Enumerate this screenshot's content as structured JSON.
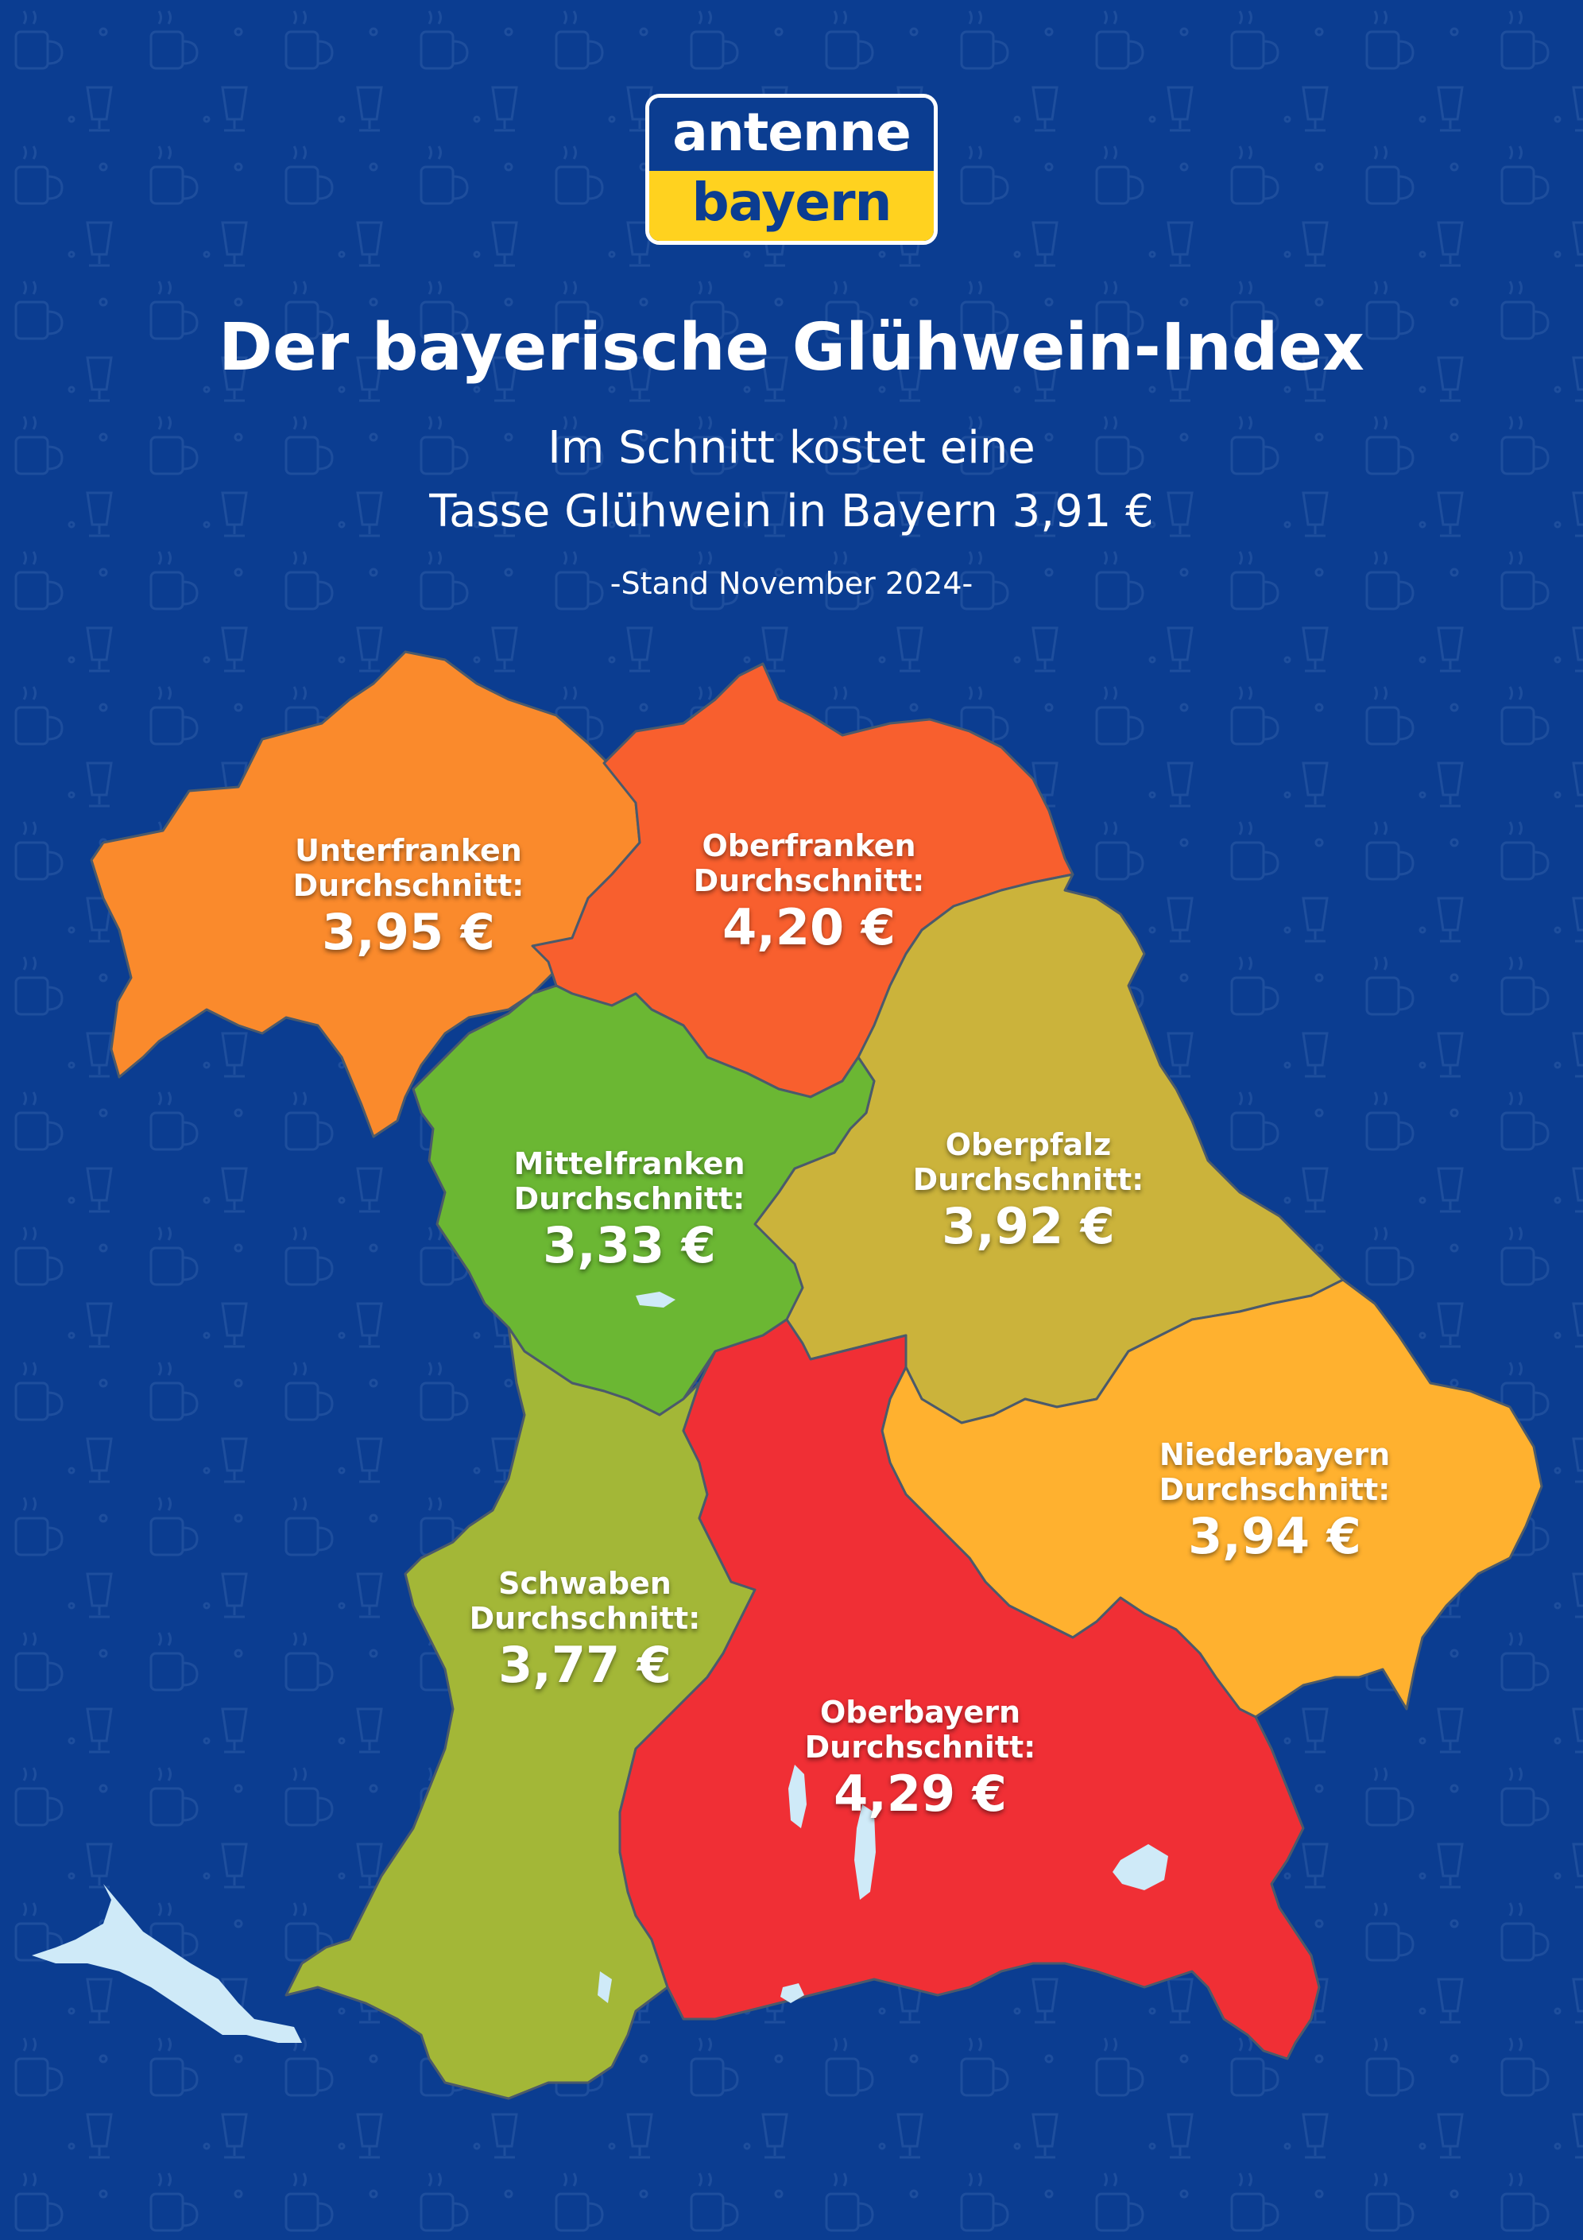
{
  "logo": {
    "line1": "antenne",
    "line2": "bayern"
  },
  "title": "Der bayerische Glühwein-Index",
  "subtitle_line1": "Im Schnitt kostet eine",
  "subtitle_line2": "Tasse Glühwein in Bayern 3,91 €",
  "date_note": "-Stand November 2024-",
  "colors": {
    "background": "#0b3d91",
    "unterfranken": "#fa8a2c",
    "oberfranken": "#f85f2e",
    "mittelfranken": "#6bb733",
    "oberpfalz": "#cbb33b",
    "niederbayern": "#ffb12f",
    "schwaben": "#a3b737",
    "oberbayern": "#f02f35",
    "lake": "#cfeaf8"
  },
  "regions": [
    {
      "key": "unterfranken",
      "name": "Unterfranken",
      "avg_label": "Durchschnitt:",
      "price": "3,95 €",
      "value": 3.95
    },
    {
      "key": "oberfranken",
      "name": "Oberfranken",
      "avg_label": "Durchschnitt:",
      "price": "4,20 €",
      "value": 4.2
    },
    {
      "key": "mittelfranken",
      "name": "Mittelfranken",
      "avg_label": "Durchschnitt:",
      "price": "3,33 €",
      "value": 3.33
    },
    {
      "key": "oberpfalz",
      "name": "Oberpfalz",
      "avg_label": "Durchschnitt:",
      "price": "3,92 €",
      "value": 3.92
    },
    {
      "key": "niederbayern",
      "name": "Niederbayern",
      "avg_label": "Durchschnitt:",
      "price": "3,94 €",
      "value": 3.94
    },
    {
      "key": "schwaben",
      "name": "Schwaben",
      "avg_label": "Durchschnitt:",
      "price": "3,77 €",
      "value": 3.77
    },
    {
      "key": "oberbayern",
      "name": "Oberbayern",
      "avg_label": "Durchschnitt:",
      "price": "4,29 €",
      "value": 4.29
    }
  ]
}
